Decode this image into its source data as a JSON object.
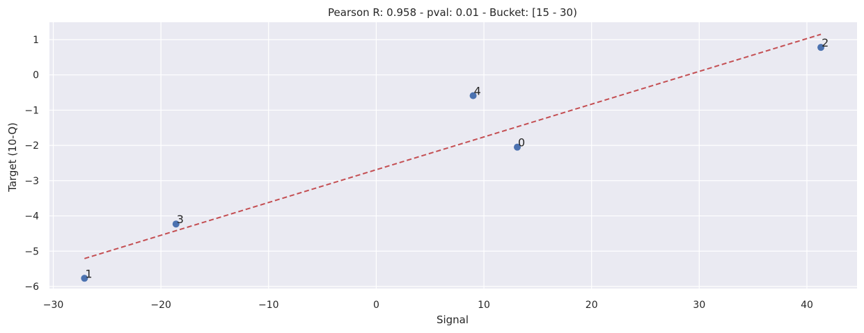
{
  "chart_data": {
    "type": "scatter",
    "title": "Pearson R: 0.958 - pval: 0.01 - Bucket: [15 - 30)",
    "xlabel": "Signal",
    "ylabel": "Target (10-Q)",
    "xlim": [
      -31,
      44.5
    ],
    "ylim": [
      -6.15,
      1.45
    ],
    "xticks": [
      -30,
      -20,
      -10,
      0,
      10,
      20,
      30,
      40
    ],
    "xtick_labels": [
      "−30",
      "−20",
      "−10",
      "0",
      "10",
      "20",
      "30",
      "40"
    ],
    "yticks": [
      1,
      0,
      -1,
      -2,
      -3,
      -4,
      -5,
      -6
    ],
    "ytick_labels": [
      "1",
      "0",
      "−1",
      "−2",
      "−3",
      "−4",
      "−5",
      "−6"
    ],
    "grid": true,
    "points": [
      {
        "label": "0",
        "x": 13.1,
        "y": -2.05
      },
      {
        "label": "1",
        "x": -27.1,
        "y": -5.77
      },
      {
        "label": "2",
        "x": 41.3,
        "y": 0.78
      },
      {
        "label": "3",
        "x": -18.6,
        "y": -4.23
      },
      {
        "label": "4",
        "x": 9.0,
        "y": -0.59
      }
    ],
    "fit_line": {
      "x": [
        -27.1,
        41.3
      ],
      "y": [
        -5.21,
        1.15
      ],
      "style": "dashed",
      "color": "#c44e52"
    },
    "point_color": "#4c72b0",
    "background": "#eaeaf2"
  }
}
